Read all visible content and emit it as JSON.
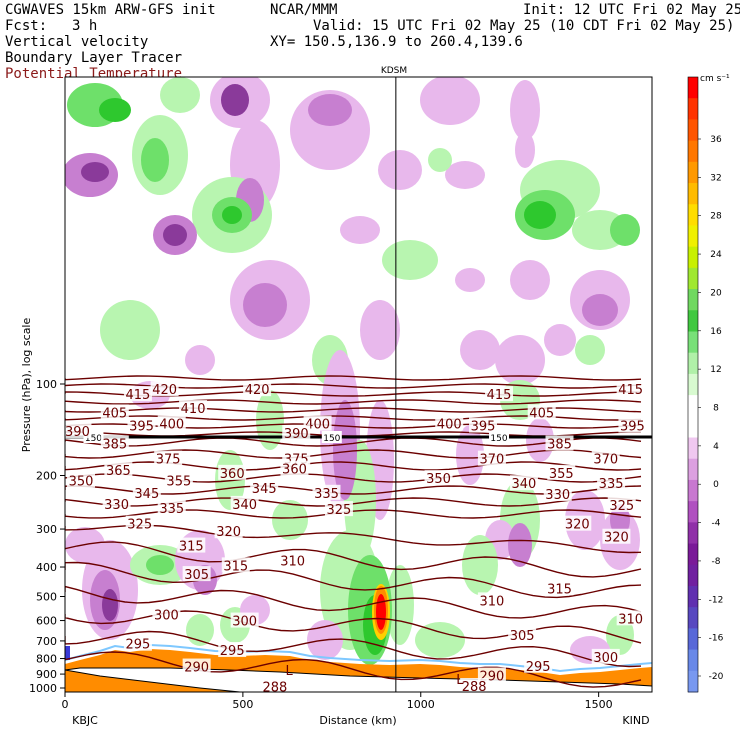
{
  "header": {
    "model": "CGWAVES 15km ARW-GFS init",
    "org": "NCAR/MMM",
    "init": "Init: 12 UTC Fri 02 May 25",
    "fcst_label": "Fcst:",
    "fcst_value": "3 h",
    "valid": "Valid: 15 UTC Fri 02 May 25 (10 CDT Fri 02 May 25)",
    "field1": "Vertical velocity",
    "field2": "Boundary Layer Tracer",
    "field3": "Potential Temperature",
    "xy": "XY= 150.5,136.9 to 260.4,139.6"
  },
  "colors": {
    "theta": "#6b0000",
    "terrain": "#ff8c00",
    "tropopause": "#000000",
    "green_light": "#b8f5b0",
    "green_mid": "#6ee06a",
    "green_dark": "#2ec82e",
    "purple_light": "#e8b8ec",
    "purple_mid": "#c77fd0",
    "purple_dark": "#8a3a9a"
  },
  "chart_data": {
    "type": "heatmap",
    "title": "KDSM",
    "xlabel": "Distance (km)",
    "ylabel": "Pressure (hPa), log scale",
    "xlim": [
      0,
      1650
    ],
    "x_ticks": [
      0,
      500,
      1000,
      1500
    ],
    "y_ticks": [
      100,
      200,
      300,
      400,
      500,
      600,
      700,
      800,
      900,
      1000
    ],
    "y_scale": "log",
    "left_station": "KBJC",
    "right_station": "KIND",
    "cross_section_marker_km": 930,
    "colorbar": {
      "unit": "cm s⁻¹",
      "labels": [
        36,
        32,
        28,
        24,
        20,
        16,
        12,
        8,
        4,
        0,
        -4,
        -8,
        -12,
        -16,
        -20
      ],
      "colors": [
        "#ff0000",
        "#ff3300",
        "#ff5500",
        "#ff7700",
        "#ff9900",
        "#ffbb00",
        "#ffdd00",
        "#f0f000",
        "#c8f000",
        "#a0e830",
        "#70d860",
        "#40c840",
        "#78e078",
        "#b0f0a8",
        "#d8fad0",
        "#ffffff",
        "#ffffff",
        "#f0c8f0",
        "#dca0e0",
        "#c878d0",
        "#b050c0",
        "#9030a8",
        "#7a1a98",
        "#7020a0",
        "#6030b0",
        "#5848c0",
        "#5868d8",
        "#6888e8",
        "#7898f0"
      ]
    },
    "theta_contours": {
      "unit": "K",
      "labels": [
        {
          "v": "415",
          "x": 205,
          "p": 108
        },
        {
          "v": "420",
          "x": 280,
          "p": 104
        },
        {
          "v": "420",
          "x": 540,
          "p": 104
        },
        {
          "v": "415",
          "x": 1220,
          "p": 108
        },
        {
          "v": "415",
          "x": 1590,
          "p": 104
        },
        {
          "v": "405",
          "x": 140,
          "p": 124
        },
        {
          "v": "410",
          "x": 360,
          "p": 120
        },
        {
          "v": "405",
          "x": 1340,
          "p": 124
        },
        {
          "v": "395",
          "x": 215,
          "p": 137
        },
        {
          "v": "400",
          "x": 300,
          "p": 135
        },
        {
          "v": "400",
          "x": 710,
          "p": 135
        },
        {
          "v": "400",
          "x": 1080,
          "p": 135
        },
        {
          "v": "395",
          "x": 1175,
          "p": 137
        },
        {
          "v": "395",
          "x": 1595,
          "p": 137
        },
        {
          "v": "390",
          "x": 35,
          "p": 143
        },
        {
          "v": "390",
          "x": 650,
          "p": 145
        },
        {
          "v": "385",
          "x": 140,
          "p": 157
        },
        {
          "v": "385",
          "x": 1390,
          "p": 157
        },
        {
          "v": "375",
          "x": 290,
          "p": 176
        },
        {
          "v": "375",
          "x": 650,
          "p": 176
        },
        {
          "v": "370",
          "x": 1200,
          "p": 176
        },
        {
          "v": "370",
          "x": 1520,
          "p": 176
        },
        {
          "v": "365",
          "x": 150,
          "p": 192
        },
        {
          "v": "360",
          "x": 470,
          "p": 196
        },
        {
          "v": "360",
          "x": 645,
          "p": 190
        },
        {
          "v": "355",
          "x": 1395,
          "p": 196
        },
        {
          "v": "350",
          "x": 45,
          "p": 208
        },
        {
          "v": "355",
          "x": 320,
          "p": 208
        },
        {
          "v": "350",
          "x": 1050,
          "p": 204
        },
        {
          "v": "340",
          "x": 1290,
          "p": 212
        },
        {
          "v": "335",
          "x": 1535,
          "p": 212
        },
        {
          "v": "345",
          "x": 230,
          "p": 228
        },
        {
          "v": "345",
          "x": 560,
          "p": 220
        },
        {
          "v": "335",
          "x": 735,
          "p": 228
        },
        {
          "v": "330",
          "x": 1385,
          "p": 230
        },
        {
          "v": "330",
          "x": 145,
          "p": 248
        },
        {
          "v": "340",
          "x": 505,
          "p": 248
        },
        {
          "v": "335",
          "x": 300,
          "p": 256
        },
        {
          "v": "325",
          "x": 770,
          "p": 258
        },
        {
          "v": "325",
          "x": 1565,
          "p": 250
        },
        {
          "v": "325",
          "x": 210,
          "p": 288
        },
        {
          "v": "320",
          "x": 460,
          "p": 305
        },
        {
          "v": "320",
          "x": 1440,
          "p": 288
        },
        {
          "v": "320",
          "x": 1550,
          "p": 318
        },
        {
          "v": "315",
          "x": 355,
          "p": 340
        },
        {
          "v": "315",
          "x": 480,
          "p": 395
        },
        {
          "v": "310",
          "x": 640,
          "p": 380
        },
        {
          "v": "305",
          "x": 370,
          "p": 422
        },
        {
          "v": "315",
          "x": 1390,
          "p": 470
        },
        {
          "v": "310",
          "x": 1200,
          "p": 515
        },
        {
          "v": "310",
          "x": 1590,
          "p": 590
        },
        {
          "v": "300",
          "x": 285,
          "p": 573
        },
        {
          "v": "300",
          "x": 505,
          "p": 600
        },
        {
          "v": "305",
          "x": 1285,
          "p": 670
        },
        {
          "v": "295",
          "x": 205,
          "p": 715
        },
        {
          "v": "295",
          "x": 470,
          "p": 750
        },
        {
          "v": "300",
          "x": 1520,
          "p": 790
        },
        {
          "v": "295",
          "x": 1330,
          "p": 845
        },
        {
          "v": "290",
          "x": 370,
          "p": 850
        },
        {
          "v": "290",
          "x": 1200,
          "p": 910
        },
        {
          "v": "288",
          "x": 590,
          "p": 990
        },
        {
          "v": "288",
          "x": 1150,
          "p": 985
        }
      ]
    },
    "tropopause_label": "150",
    "tropopause_labels_x": [
      80,
      750,
      1220
    ],
    "low_labels": [
      {
        "v": "L",
        "x": 630,
        "p": 880
      },
      {
        "v": "L",
        "x": 1110,
        "p": 940
      }
    ]
  }
}
